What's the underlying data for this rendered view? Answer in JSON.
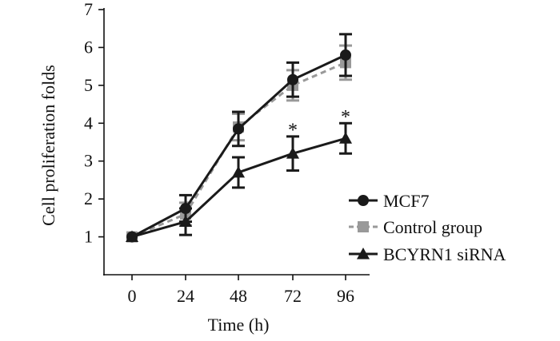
{
  "chart_data": {
    "type": "line",
    "title": "",
    "xlabel": "Time (h)",
    "ylabel": "Cell proliferation folds",
    "x": [
      0,
      24,
      48,
      72,
      96
    ],
    "x_tick_labels": [
      "0",
      "24",
      "48",
      "72",
      "96"
    ],
    "ylim": [
      0,
      7
    ],
    "y_ticks": [
      1,
      2,
      3,
      4,
      5,
      6,
      7
    ],
    "y_tick_labels": [
      "1",
      "2",
      "3",
      "4",
      "5",
      "6",
      "7"
    ],
    "legend_position": "right",
    "series": [
      {
        "name": "MCF7",
        "marker": "circle",
        "line_style": "solid",
        "color": "#1a1a1a",
        "values": [
          1.0,
          1.75,
          3.85,
          5.15,
          5.8
        ],
        "errors": [
          0.05,
          0.35,
          0.45,
          0.45,
          0.55
        ]
      },
      {
        "name": "Control group",
        "marker": "square",
        "line_style": "dashed",
        "color": "#999999",
        "values": [
          1.0,
          1.6,
          3.9,
          5.0,
          5.6
        ],
        "errors": [
          0.05,
          0.3,
          0.35,
          0.4,
          0.45
        ]
      },
      {
        "name": "BCYRN1 siRNA",
        "marker": "triangle",
        "line_style": "solid",
        "color": "#1a1a1a",
        "values": [
          1.0,
          1.4,
          2.7,
          3.2,
          3.6
        ],
        "errors": [
          0.05,
          0.35,
          0.4,
          0.45,
          0.4
        ]
      }
    ],
    "annotations": [
      {
        "text": "*",
        "x": 72,
        "y": 3.95
      },
      {
        "text": "*",
        "x": 96,
        "y": 4.3
      }
    ]
  }
}
